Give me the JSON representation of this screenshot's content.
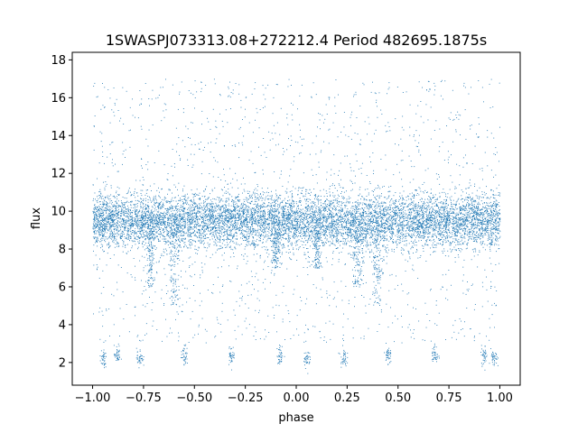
{
  "chart_data": {
    "type": "scatter",
    "title": "1SWASPJ073313.08+272212.4 Period 482695.1875s",
    "xlabel": "phase",
    "ylabel": "flux",
    "xlim": [
      -1.1,
      1.1
    ],
    "ylim": [
      0.8,
      18.4
    ],
    "xticks": [
      -1.0,
      -0.75,
      -0.5,
      -0.25,
      0.0,
      0.25,
      0.5,
      0.75,
      1.0
    ],
    "xtick_labels": [
      "−1.00",
      "−0.75",
      "−0.50",
      "−0.25",
      "0.00",
      "0.25",
      "0.50",
      "0.75",
      "1.00"
    ],
    "yticks": [
      2,
      4,
      6,
      8,
      10,
      12,
      14,
      16,
      18
    ],
    "ytick_labels": [
      "2",
      "4",
      "6",
      "8",
      "10",
      "12",
      "14",
      "16",
      "18"
    ],
    "grid": false,
    "marker_color": "#1f77b4",
    "series": [
      {
        "description_of_distribution": "phase-folded light curve; dense band around flux 9.5 spanning phase -1 to 1, sparse scatter 3-17, low clusters near flux 2.2",
        "main_band": {
          "x_range": [
            -1.0,
            1.0
          ],
          "y_center": 9.5,
          "y_spread": 0.7
        },
        "low_clusters": [
          {
            "x": -0.95,
            "y": 2.2
          },
          {
            "x": -0.88,
            "y": 2.4
          },
          {
            "x": -0.77,
            "y": 2.3
          },
          {
            "x": -0.55,
            "y": 2.4
          },
          {
            "x": -0.32,
            "y": 2.4
          },
          {
            "x": -0.08,
            "y": 2.4
          },
          {
            "x": 0.05,
            "y": 2.2
          },
          {
            "x": 0.23,
            "y": 2.3
          },
          {
            "x": 0.45,
            "y": 2.4
          },
          {
            "x": 0.68,
            "y": 2.4
          },
          {
            "x": 0.92,
            "y": 2.4
          },
          {
            "x": 0.97,
            "y": 2.2
          }
        ],
        "dips": [
          {
            "x": -0.6,
            "y": 5.0
          },
          {
            "x": -0.72,
            "y": 6.0
          },
          {
            "x": 0.4,
            "y": 5.0
          },
          {
            "x": 0.3,
            "y": 6.0
          },
          {
            "x": -0.1,
            "y": 7.0
          },
          {
            "x": 0.1,
            "y": 7.0
          }
        ]
      }
    ]
  }
}
